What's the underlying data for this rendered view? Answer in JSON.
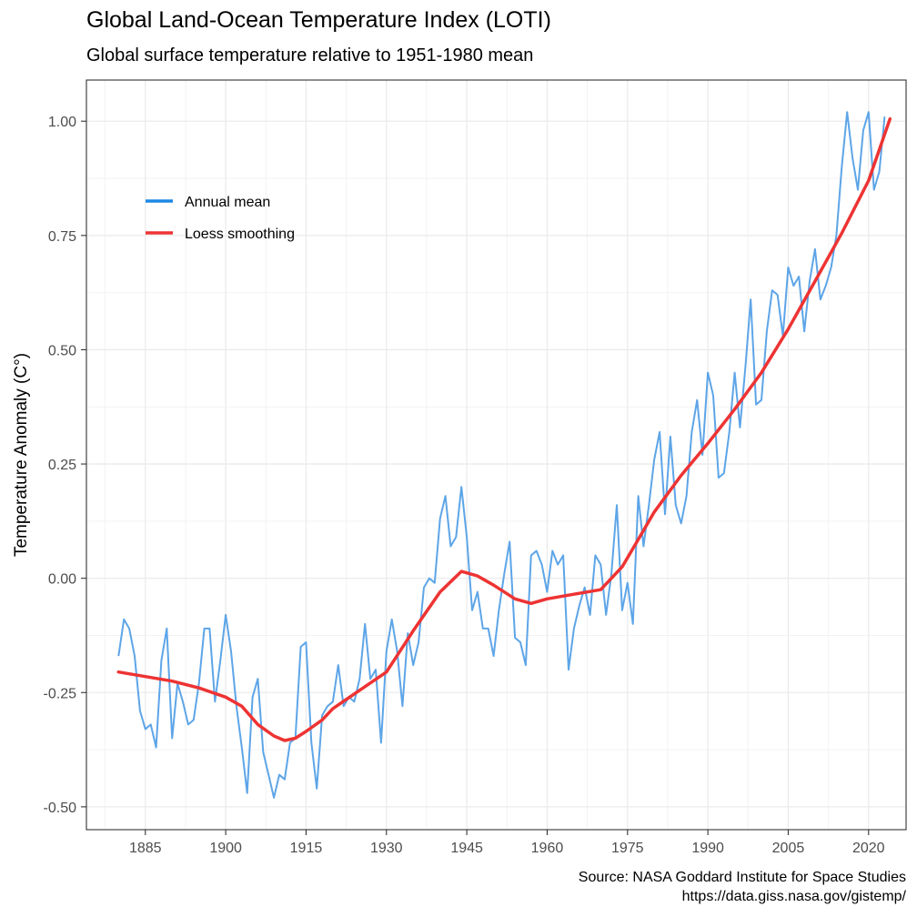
{
  "chart_data": {
    "type": "line",
    "title": "Global Land-Ocean Temperature Index (LOTI)",
    "subtitle": "Global surface temperature relative to 1951-1980 mean",
    "xlabel": "",
    "ylabel": "Temperature Anomaly (C°)",
    "xlim": [
      1874,
      2027
    ],
    "ylim": [
      -0.55,
      1.09
    ],
    "x_ticks": [
      1885,
      1900,
      1915,
      1930,
      1945,
      1960,
      1975,
      1990,
      2005,
      2020
    ],
    "x_tick_labels": [
      "1885",
      "1900",
      "1915",
      "1930",
      "1945",
      "1960",
      "1975",
      "1990",
      "2005",
      "2020"
    ],
    "y_ticks": [
      -0.5,
      -0.25,
      0,
      0.25,
      0.5,
      0.75,
      1.0
    ],
    "y_tick_labels": [
      "-0.50",
      "-0.25",
      "0.00",
      "0.25",
      "0.50",
      "0.75",
      "1.00"
    ],
    "grid": true,
    "legend_position": "top-left",
    "caption": [
      "Source: NASA Goddard Institute for Space Studies",
      "https://data.giss.nasa.gov/gistemp/"
    ],
    "x_start_year": 1880,
    "series": [
      {
        "name": "Annual mean",
        "color": "#5DA5E8",
        "values": [
          -0.17,
          -0.09,
          -0.11,
          -0.17,
          -0.29,
          -0.33,
          -0.32,
          -0.37,
          -0.18,
          -0.11,
          -0.35,
          -0.23,
          -0.27,
          -0.32,
          -0.31,
          -0.23,
          -0.11,
          -0.11,
          -0.27,
          -0.18,
          -0.08,
          -0.16,
          -0.28,
          -0.37,
          -0.47,
          -0.26,
          -0.22,
          -0.38,
          -0.43,
          -0.48,
          -0.43,
          -0.44,
          -0.36,
          -0.35,
          -0.15,
          -0.14,
          -0.36,
          -0.46,
          -0.3,
          -0.28,
          -0.27,
          -0.19,
          -0.28,
          -0.26,
          -0.27,
          -0.22,
          -0.1,
          -0.22,
          -0.2,
          -0.36,
          -0.16,
          -0.09,
          -0.16,
          -0.28,
          -0.12,
          -0.19,
          -0.14,
          -0.02,
          0.0,
          -0.01,
          0.13,
          0.18,
          0.07,
          0.09,
          0.2,
          0.09,
          -0.07,
          -0.03,
          -0.11,
          -0.11,
          -0.17,
          -0.07,
          0.01,
          0.08,
          -0.13,
          -0.14,
          -0.19,
          0.05,
          0.06,
          0.03,
          -0.03,
          0.06,
          0.03,
          0.05,
          -0.2,
          -0.11,
          -0.06,
          -0.02,
          -0.08,
          0.05,
          0.03,
          -0.08,
          0.01,
          0.16,
          -0.07,
          -0.01,
          -0.1,
          0.18,
          0.07,
          0.16,
          0.26,
          0.32,
          0.14,
          0.31,
          0.16,
          0.12,
          0.18,
          0.32,
          0.39,
          0.27,
          0.45,
          0.4,
          0.22,
          0.23,
          0.32,
          0.45,
          0.33,
          0.46,
          0.61,
          0.38,
          0.39,
          0.54,
          0.63,
          0.62,
          0.53,
          0.68,
          0.64,
          0.66,
          0.54,
          0.65,
          0.72,
          0.61,
          0.64,
          0.68,
          0.75,
          0.9,
          1.02,
          0.92,
          0.85,
          0.98,
          1.02,
          0.85,
          0.89,
          1.01
        ]
      },
      {
        "name": "Loess smoothing",
        "color": "#EE3333",
        "x": [
          1880,
          1885,
          1890,
          1895,
          1900,
          1903,
          1906,
          1909,
          1911,
          1913,
          1915,
          1918,
          1920,
          1925,
          1930,
          1935,
          1940,
          1944,
          1947,
          1950,
          1954,
          1957,
          1960,
          1965,
          1970,
          1974,
          1977,
          1980,
          1985,
          1990,
          1995,
          2000,
          2005,
          2010,
          2015,
          2020,
          2024
        ],
        "values": [
          -0.205,
          -0.215,
          -0.225,
          -0.24,
          -0.26,
          -0.28,
          -0.32,
          -0.345,
          -0.355,
          -0.35,
          -0.335,
          -0.31,
          -0.285,
          -0.245,
          -0.205,
          -0.115,
          -0.03,
          0.015,
          0.005,
          -0.015,
          -0.045,
          -0.055,
          -0.045,
          -0.035,
          -0.025,
          0.025,
          0.085,
          0.145,
          0.225,
          0.295,
          0.37,
          0.45,
          0.545,
          0.65,
          0.755,
          0.87,
          1.005
        ]
      }
    ]
  }
}
